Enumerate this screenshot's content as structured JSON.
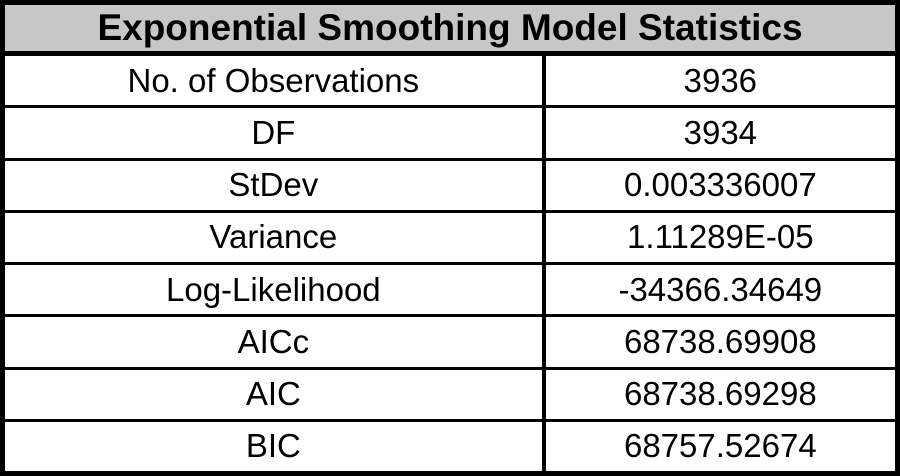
{
  "chart_data": {
    "type": "table",
    "title": "Exponential Smoothing Model Statistics",
    "rows": [
      {
        "label": "No. of Observations",
        "value": "3936"
      },
      {
        "label": "DF",
        "value": "3934"
      },
      {
        "label": "StDev",
        "value": "0.003336007"
      },
      {
        "label": "Variance",
        "value": "1.11289E-05"
      },
      {
        "label": "Log-Likelihood",
        "value": "-34366.34649"
      },
      {
        "label": "AICc",
        "value": "68738.69908"
      },
      {
        "label": "AIC",
        "value": "68738.69298"
      },
      {
        "label": "BIC",
        "value": "68757.52674"
      }
    ],
    "layout": {
      "columns": 2,
      "header_spans_columns": true,
      "text_alignment": "center"
    },
    "colors": {
      "header_background": "#c7c7c7",
      "border": "#000000",
      "text": "#000000",
      "row_background": "#ffffff"
    }
  }
}
